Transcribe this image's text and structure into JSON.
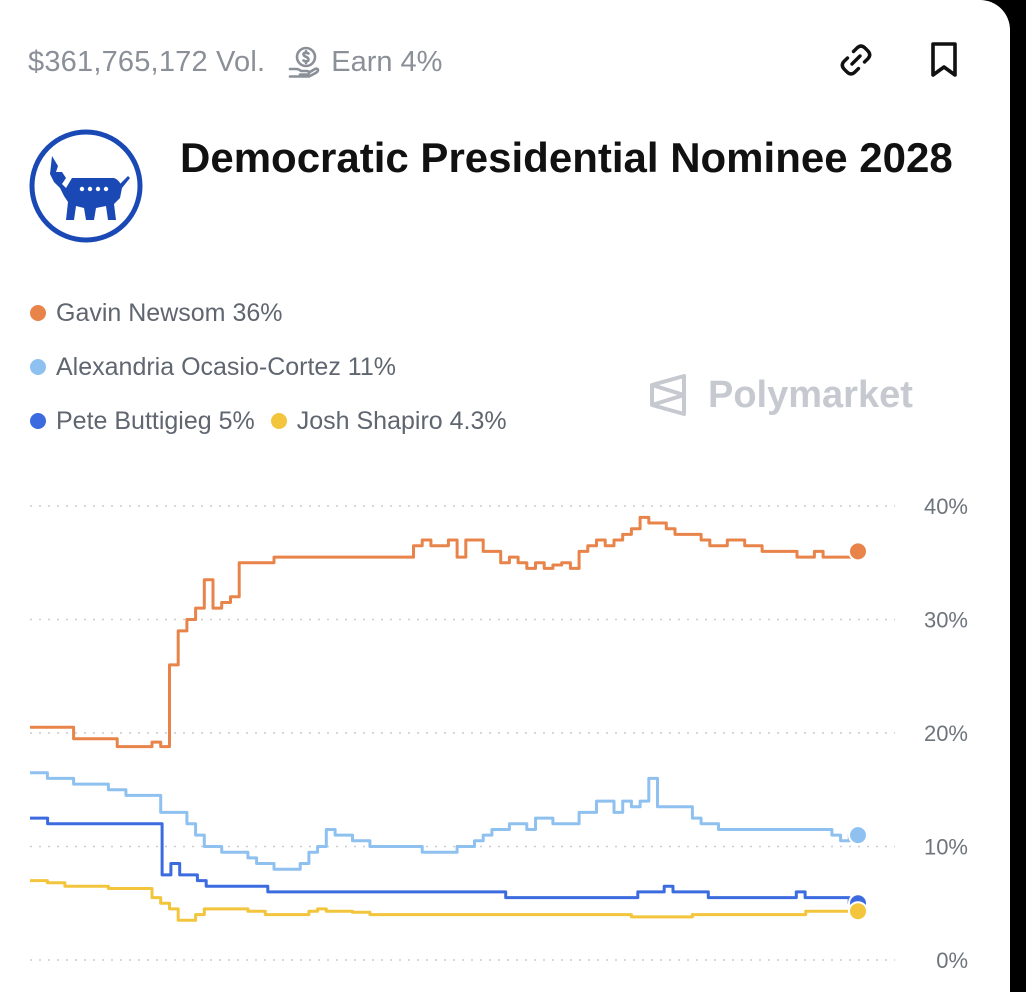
{
  "header": {
    "volume": "$361,765,172 Vol.",
    "earn": "Earn 4%",
    "icons": [
      "coin-hand-icon",
      "link-icon",
      "bookmark-icon"
    ]
  },
  "market": {
    "title": "Democratic Presidential Nominee 2028",
    "logo": "democratic-donkey-logo"
  },
  "watermark": "Polymarket",
  "colors": {
    "newsom": "#e8844a",
    "aoc": "#8fc1f0",
    "buttigieg": "#3c6be0",
    "shapiro": "#f2c53d",
    "logo_blue": "#1a49b5"
  },
  "legend": [
    {
      "label": "Gavin Newsom 36%",
      "color": "#e8844a"
    },
    {
      "label": "Alexandria Ocasio-Cortez 11%",
      "color": "#8fc1f0"
    },
    {
      "label": "Pete Buttigieg 5%",
      "color": "#3c6be0"
    },
    {
      "label": "Josh Shapiro 4.3%",
      "color": "#f2c53d"
    }
  ],
  "chart_data": {
    "type": "line",
    "ylim": [
      0,
      40
    ],
    "y_ticks": [
      "40%",
      "30%",
      "20%",
      "10%",
      "0%"
    ],
    "grid": true,
    "x_labels_shown": false,
    "series": [
      {
        "name": "Gavin Newsom",
        "color": "#e8844a",
        "values": [
          20.5,
          20.5,
          20.5,
          20.5,
          20.5,
          19.5,
          19.5,
          19.5,
          19.5,
          19.5,
          18.8,
          18.8,
          18.8,
          18.8,
          19.2,
          18.8,
          26,
          29,
          30,
          31,
          33.5,
          31,
          31.5,
          32,
          35,
          35,
          35,
          35,
          35.5,
          35.5,
          35.5,
          35.5,
          35.5,
          35.5,
          35.5,
          35.5,
          35.5,
          35.5,
          35.5,
          35.5,
          35.5,
          35.5,
          35.5,
          35.5,
          36.5,
          37,
          36.5,
          36.5,
          37,
          35.5,
          37,
          37,
          36,
          36,
          35,
          35.5,
          35,
          34.5,
          35,
          34.5,
          34.8,
          35,
          34.5,
          36,
          36.5,
          37,
          36.5,
          37,
          37.5,
          38,
          39,
          38.5,
          38.5,
          38,
          37.5,
          37.5,
          37.5,
          37,
          36.5,
          36.5,
          37,
          37,
          36.5,
          36.5,
          36,
          36,
          36,
          36,
          35.5,
          35.5,
          36,
          35.5,
          35.5,
          35.5,
          35.5,
          36
        ]
      },
      {
        "name": "Alexandria Ocasio-Cortez",
        "color": "#8fc1f0",
        "values": [
          16.5,
          16.5,
          16,
          16,
          16,
          15.5,
          15.5,
          15.5,
          15.5,
          15,
          15,
          14.5,
          14.5,
          14.5,
          14.5,
          13,
          13,
          13,
          12,
          11,
          10,
          10,
          9.5,
          9.5,
          9.5,
          9,
          8.5,
          8.5,
          8,
          8,
          8,
          8.5,
          9.5,
          10,
          11.5,
          11,
          11,
          10.5,
          10.5,
          10,
          10,
          10,
          10,
          10,
          10,
          9.5,
          9.5,
          9.5,
          9.5,
          10,
          10,
          10.5,
          11,
          11.5,
          11.5,
          12,
          12,
          11.5,
          12.5,
          12.5,
          12,
          12,
          12,
          13,
          13,
          14,
          14,
          13,
          14,
          13.5,
          14,
          16,
          13.5,
          13.5,
          13.5,
          13.5,
          12.5,
          12,
          12,
          11.5,
          11.5,
          11.5,
          11.5,
          11.5,
          11.5,
          11.5,
          11.5,
          11.5,
          11.5,
          11.5,
          11.5,
          11.5,
          11,
          10.5,
          11,
          11
        ]
      },
      {
        "name": "Pete Buttigieg",
        "color": "#3c6be0",
        "values": [
          12.5,
          12.5,
          12,
          12,
          12,
          12,
          12,
          12,
          12,
          12,
          12,
          12,
          12,
          12,
          12,
          7.5,
          8.5,
          7.5,
          7.5,
          7,
          6.5,
          6.5,
          6.5,
          6.5,
          6.5,
          6.5,
          6.5,
          6,
          6,
          6,
          6,
          6,
          6,
          6,
          6,
          6,
          6,
          6,
          6,
          6,
          6,
          6,
          6,
          6,
          6,
          6,
          6,
          6,
          6,
          6,
          6,
          6,
          6,
          6,
          5.5,
          5.5,
          5.5,
          5.5,
          5.5,
          5.5,
          5.5,
          5.5,
          5.5,
          5.5,
          5.5,
          5.5,
          5.5,
          5.5,
          5.5,
          6,
          6,
          6,
          6.5,
          6,
          6,
          6,
          6,
          5.5,
          5.5,
          5.5,
          5.5,
          5.5,
          5.5,
          5.5,
          5.5,
          5.5,
          5.5,
          6,
          5.5,
          5.5,
          5.5,
          5.5,
          5.5,
          5,
          5
        ]
      },
      {
        "name": "Josh Shapiro",
        "color": "#f2c53d",
        "values": [
          7,
          7,
          6.8,
          6.8,
          6.5,
          6.5,
          6.5,
          6.5,
          6.5,
          6.3,
          6.3,
          6.3,
          6.3,
          6.3,
          5.5,
          5,
          4.5,
          3.5,
          3.5,
          4,
          4.5,
          4.5,
          4.5,
          4.5,
          4.5,
          4.3,
          4.3,
          4,
          4,
          4,
          4,
          4,
          4.3,
          4.5,
          4.3,
          4.3,
          4.3,
          4.2,
          4.2,
          4,
          4,
          4,
          4,
          4,
          4,
          4,
          4,
          4,
          4,
          4,
          4,
          4,
          4,
          4,
          4,
          4,
          4,
          4,
          4,
          4,
          4,
          4,
          4,
          4,
          4,
          4,
          4,
          4,
          4,
          3.8,
          3.8,
          3.8,
          3.8,
          3.8,
          3.8,
          3.8,
          4,
          4,
          4,
          4,
          4,
          4,
          4,
          4,
          4,
          4,
          4,
          4,
          4,
          4.3,
          4.3,
          4.3,
          4.3,
          4.3,
          4.3,
          4.3
        ]
      }
    ]
  }
}
